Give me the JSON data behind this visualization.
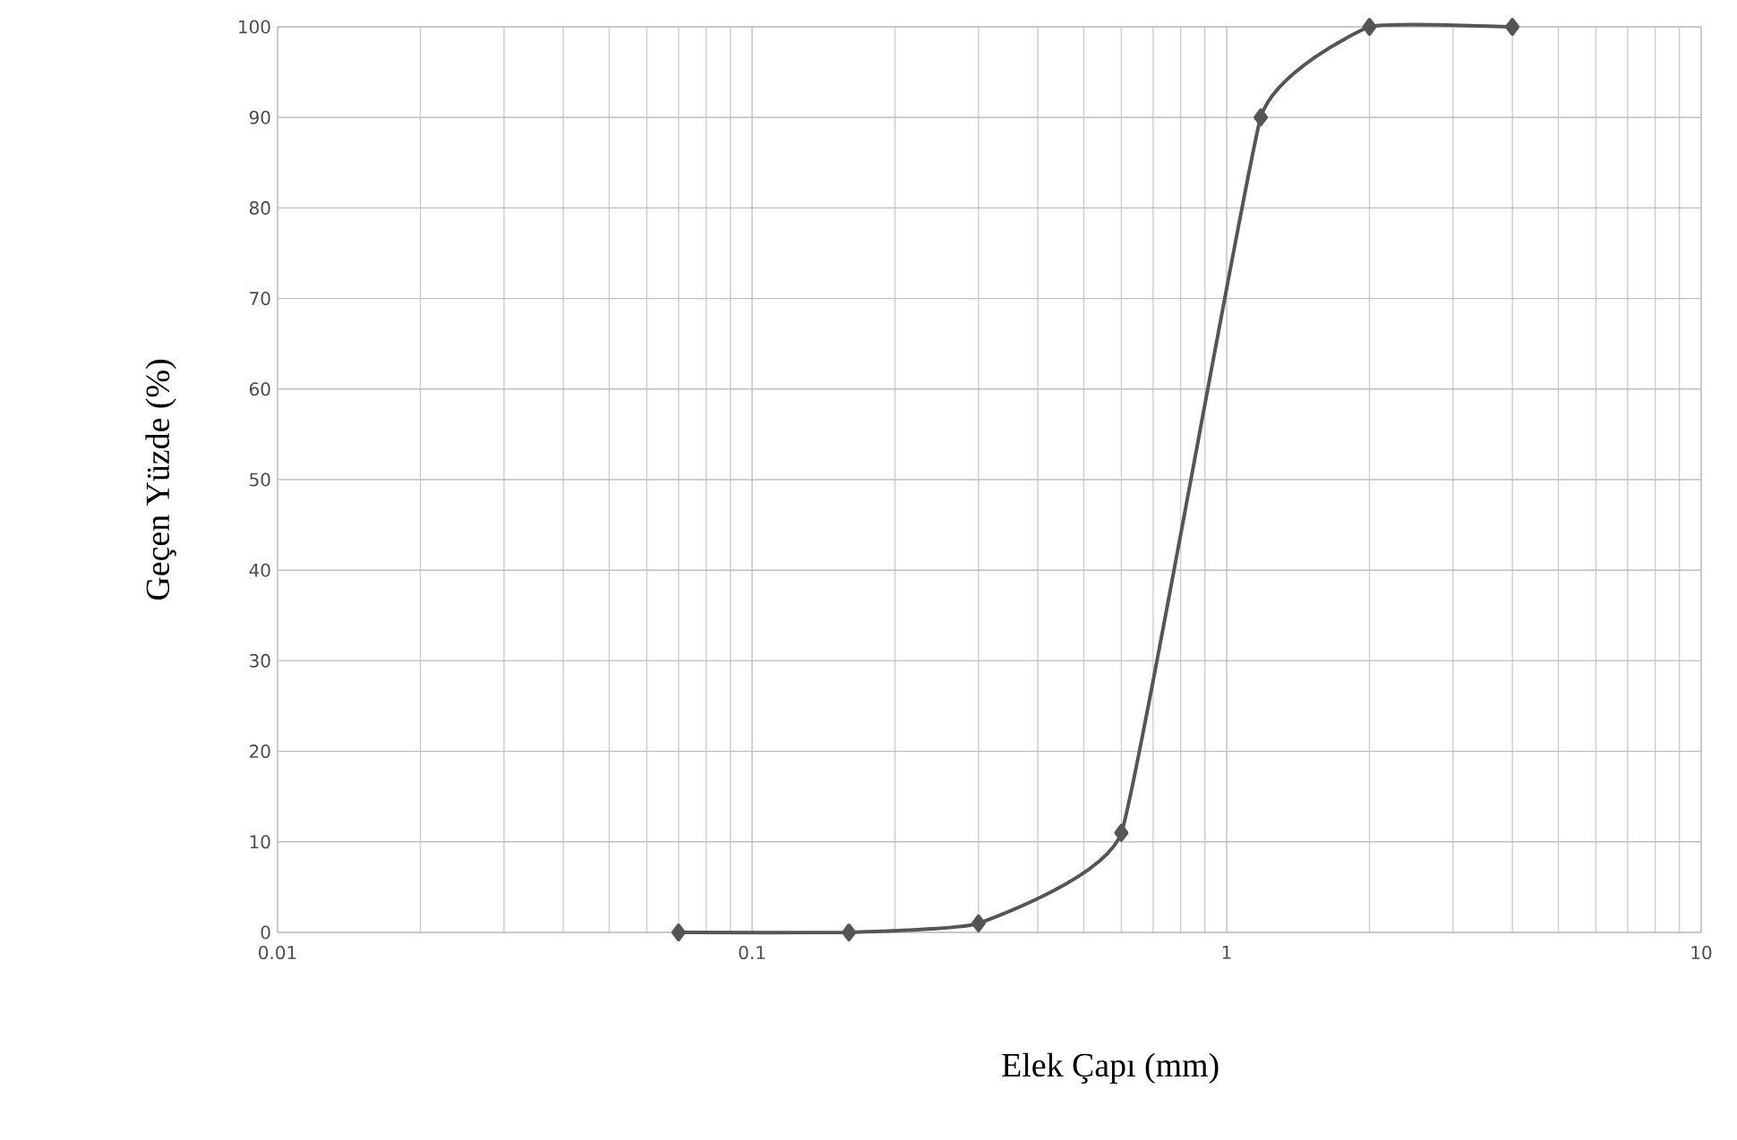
{
  "chart_data": {
    "type": "line",
    "xlabel": "Elek Çapı (mm)",
    "ylabel": "Geçen Yüzde (%)",
    "log": "x",
    "x": [
      0.07,
      0.16,
      0.3,
      0.6,
      1.18,
      2.0,
      4.0
    ],
    "series": [
      {
        "color": "#555555",
        "values": [
          0,
          0,
          1,
          11,
          90,
          100,
          100
        ]
      }
    ],
    "xlim": [
      0.01,
      10
    ],
    "xticks": [
      0.01,
      0.1,
      1,
      10
    ],
    "ylim": [
      0,
      100
    ],
    "yticks": [
      0,
      10,
      20,
      30,
      40,
      50,
      60,
      70,
      80,
      90,
      100
    ],
    "grid": true,
    "marker": "diamond",
    "line_style": "solid"
  }
}
